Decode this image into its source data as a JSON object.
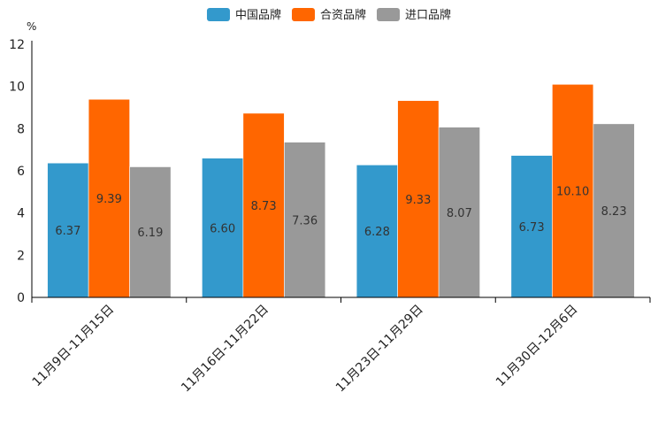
{
  "chart_data": {
    "type": "bar",
    "unit": "%",
    "categories": [
      "11月9日-11月15日",
      "11月16日-11月22日",
      "11月23日-11月29日",
      "11月30日-12月6日"
    ],
    "series": [
      {
        "name": "中国品牌",
        "color": "#3399cc",
        "values": [
          6.37,
          6.6,
          6.28,
          6.73
        ],
        "labels": [
          "6.37",
          "6.60",
          "6.28",
          "6.73"
        ]
      },
      {
        "name": "合资品牌",
        "color": "#ff6600",
        "values": [
          9.39,
          8.73,
          9.33,
          10.1
        ],
        "labels": [
          "9.39",
          "8.73",
          "9.33",
          "10.10"
        ]
      },
      {
        "name": "进口品牌",
        "color": "#999999",
        "values": [
          6.19,
          7.36,
          8.07,
          8.23
        ],
        "labels": [
          "6.19",
          "7.36",
          "8.07",
          "8.23"
        ]
      }
    ],
    "ylim": [
      0,
      12
    ],
    "yticks": [
      "0",
      "2",
      "4",
      "6",
      "8",
      "10",
      "12"
    ],
    "legend_position": "top-center",
    "grid": false
  }
}
